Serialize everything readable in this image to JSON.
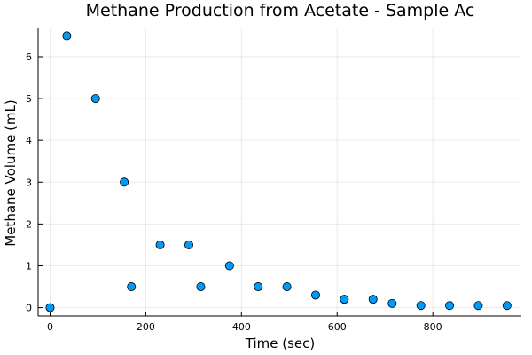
{
  "chart_data": {
    "type": "scatter",
    "title": "Methane Production from Acetate - Sample Ac",
    "xlabel": "Time (sec)",
    "ylabel": "Methane Volume (mL)",
    "xlim": [
      -25,
      985
    ],
    "ylim": [
      -0.2,
      6.7
    ],
    "xticks": [
      0,
      200,
      400,
      600,
      800
    ],
    "yticks": [
      0,
      1,
      2,
      3,
      4,
      5,
      6
    ],
    "grid": true,
    "legend": "none",
    "marker_color": "#009af9",
    "series": [
      {
        "x": [
          0,
          35,
          95,
          155,
          170,
          230,
          290,
          315,
          375,
          435,
          495,
          555,
          615,
          675,
          715,
          775,
          835,
          895,
          955
        ],
        "y": [
          0,
          6.5,
          5.0,
          3.0,
          0.5,
          1.5,
          1.5,
          0.5,
          1.0,
          0.5,
          0.5,
          0.3,
          0.2,
          0.2,
          0.1,
          0.05,
          0.05,
          0.05,
          0.05
        ]
      }
    ]
  }
}
